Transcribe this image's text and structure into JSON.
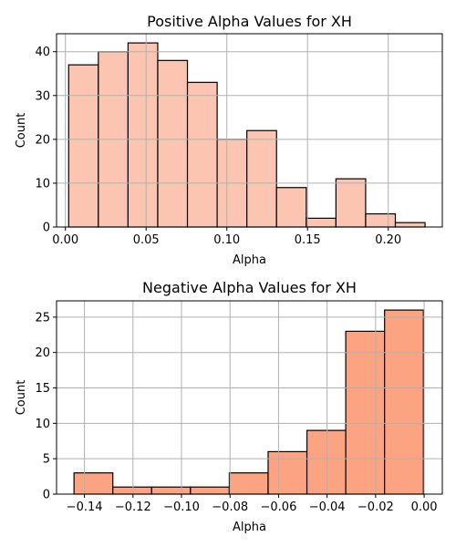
{
  "chart_data": [
    {
      "type": "bar",
      "title": "Positive Alpha Values for XH",
      "xlabel": "Alpha",
      "ylabel": "Count",
      "color": "#fcc5b2",
      "xlim": [
        -0.0055,
        0.2335
      ],
      "ylim": [
        0,
        44.1
      ],
      "xticks": [
        {
          "value": 0.0,
          "label": "0.00"
        },
        {
          "value": 0.05,
          "label": "0.05"
        },
        {
          "value": 0.1,
          "label": "0.10"
        },
        {
          "value": 0.15,
          "label": "0.15"
        },
        {
          "value": 0.2,
          "label": "0.20"
        }
      ],
      "yticks": [
        {
          "value": 0,
          "label": "0"
        },
        {
          "value": 10,
          "label": "10"
        },
        {
          "value": 20,
          "label": "20"
        },
        {
          "value": 30,
          "label": "30"
        },
        {
          "value": 40,
          "label": "40"
        }
      ],
      "bin_edges": [
        0.002,
        0.0204,
        0.0388,
        0.0572,
        0.0756,
        0.094,
        0.1124,
        0.1308,
        0.1492,
        0.1676,
        0.186,
        0.2044,
        0.2228
      ],
      "values": [
        37,
        40,
        42,
        38,
        33,
        20,
        22,
        9,
        2,
        11,
        3,
        1
      ],
      "grid": true
    },
    {
      "type": "bar",
      "title": "Negative Alpha Values for XH",
      "xlabel": "Alpha",
      "ylabel": "Count",
      "color": "#fca482",
      "xlim": [
        -0.1515,
        0.0075
      ],
      "ylim": [
        0,
        27.3
      ],
      "xticks": [
        {
          "value": -0.14,
          "label": "−0.14"
        },
        {
          "value": -0.12,
          "label": "−0.12"
        },
        {
          "value": -0.1,
          "label": "−0.10"
        },
        {
          "value": -0.08,
          "label": "−0.08"
        },
        {
          "value": -0.06,
          "label": "−0.06"
        },
        {
          "value": -0.04,
          "label": "−0.04"
        },
        {
          "value": -0.02,
          "label": "−0.02"
        },
        {
          "value": 0.0,
          "label": "0.00"
        }
      ],
      "yticks": [
        {
          "value": 0,
          "label": "0"
        },
        {
          "value": 5,
          "label": "5"
        },
        {
          "value": 10,
          "label": "10"
        },
        {
          "value": 15,
          "label": "15"
        },
        {
          "value": 20,
          "label": "20"
        },
        {
          "value": 25,
          "label": "25"
        }
      ],
      "bin_edges": [
        -0.1443,
        -0.1283,
        -0.1123,
        -0.0963,
        -0.0803,
        -0.0643,
        -0.0483,
        -0.0323,
        -0.0163,
        -0.0003
      ],
      "values": [
        3,
        1,
        1,
        1,
        3,
        6,
        9,
        23,
        26
      ],
      "grid": true
    }
  ]
}
